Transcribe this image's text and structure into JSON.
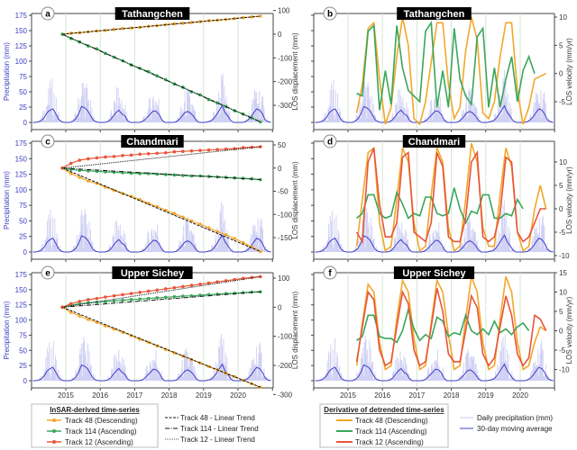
{
  "colors": {
    "track48": "#f2a72b",
    "track114": "#3aa65a",
    "track12": "#e8553a",
    "precip_avg": "#4040c8",
    "precip_daily": "#c9c9f2",
    "trend": "#111111",
    "grid": "#d5e6d5"
  },
  "precipitation": {
    "axis_label": "Precipitation (mm)",
    "ticks": [
      0,
      25,
      50,
      75,
      100,
      125,
      150,
      175
    ],
    "monthly_avg_start_year": 2014,
    "monthly_avg": [
      0,
      0,
      1,
      3,
      8,
      16,
      20,
      22,
      14,
      5,
      1,
      0,
      0,
      0,
      2,
      6,
      14,
      26,
      24,
      20,
      12,
      4,
      1,
      0,
      0,
      0,
      1,
      4,
      10,
      16,
      20,
      14,
      11,
      3,
      0,
      0,
      0,
      0,
      1,
      4,
      9,
      14,
      19,
      18,
      13,
      4,
      0,
      0,
      0,
      0,
      1,
      5,
      10,
      16,
      18,
      15,
      10,
      3,
      0,
      0,
      0,
      1,
      2,
      6,
      12,
      20,
      27,
      16,
      10,
      3,
      0,
      0,
      0,
      0,
      1,
      4,
      9,
      16,
      22,
      20,
      14,
      4,
      1,
      0
    ]
  },
  "x_ticks": [
    "2015",
    "2016",
    "2017",
    "2018",
    "2019",
    "2020"
  ],
  "chart_data": [
    {
      "panel": "a",
      "title": "Tathangchen",
      "type": "line",
      "ylabel_right": "LOS displacement (mm)",
      "right_ticks": [
        100,
        0,
        -100,
        -200,
        -300
      ],
      "x_start": 2014.9,
      "x_step": 0.25,
      "series": [
        {
          "name": "Track 48 (Descending)",
          "key": "track48",
          "values": [
            0,
            4,
            6,
            10,
            14,
            16,
            20,
            24,
            26,
            29,
            33,
            36,
            40,
            44,
            46,
            49,
            53,
            57,
            59,
            62,
            66,
            70,
            73,
            76
          ],
          "trend": [
            0,
            76
          ]
        },
        {
          "name": "Track 114 (Ascending)",
          "key": "track114",
          "values": [
            0,
            -18,
            -33,
            -50,
            -62,
            -81,
            -97,
            -112,
            -130,
            -144,
            -158,
            -176,
            -192,
            -210,
            -224,
            -243,
            -256,
            -276,
            -290,
            -305,
            -323,
            -337,
            -353,
            -370
          ],
          "trend": [
            0,
            -370
          ]
        }
      ]
    },
    {
      "panel": "b",
      "title": "Tathangchen",
      "type": "line",
      "ylabel_right": "LOS velocity (mm/yr)",
      "right_ticks": [
        10,
        5,
        0,
        -5
      ],
      "x_start": 2015.25,
      "x_step": 0.1667,
      "series": [
        {
          "name": "Track 48 (Descending)",
          "key": "track48",
          "values": [
            -7,
            -2,
            8,
            9,
            -1,
            -9,
            -6,
            3,
            10,
            5,
            -8,
            -9,
            -5,
            2,
            9,
            9,
            -2,
            -8,
            -6,
            4,
            10,
            6,
            -7,
            -8,
            -5,
            3,
            9,
            9,
            -3,
            -9,
            -6,
            -1,
            -0.5,
            0
          ]
        },
        {
          "name": "Track 114 (Ascending)",
          "key": "track114",
          "values": [
            -3.5,
            -4,
            7.5,
            8.5,
            -6.5,
            0.5,
            -5.5,
            8.5,
            1,
            -3,
            -4,
            -5,
            7.5,
            9,
            -6,
            0.5,
            -6,
            8,
            -1,
            -4,
            -5.5,
            6.5,
            8,
            -6,
            1,
            -6,
            -1,
            3,
            -5,
            0.5,
            3,
            0
          ]
        }
      ]
    },
    {
      "panel": "c",
      "title": "Chandmari",
      "type": "line",
      "ylabel_right": "LOS displacement (mm)",
      "right_ticks": [
        50,
        0,
        -50,
        -100,
        -150
      ],
      "x_start": 2014.9,
      "x_step": 0.25,
      "series": [
        {
          "name": "Track 48 (Descending)",
          "key": "track48",
          "values": [
            0,
            -12,
            -20,
            -28,
            -33,
            -41,
            -48,
            -55,
            -61,
            -68,
            -76,
            -83,
            -91,
            -98,
            -106,
            -114,
            -121,
            -129,
            -137,
            -144,
            -152,
            -161,
            -170,
            -180
          ],
          "trend": [
            0,
            -180
          ]
        },
        {
          "name": "Track 114 (Ascending)",
          "key": "track114",
          "values": [
            0,
            -3,
            -5,
            -6,
            -7,
            -8,
            -9,
            -10,
            -11,
            -12,
            -12,
            -13,
            -14,
            -15,
            -16,
            -17,
            -17,
            -18,
            -19,
            -20,
            -21,
            -22,
            -23,
            -25
          ],
          "trend": [
            0,
            -25
          ]
        },
        {
          "name": "Track 12 (Ascending)",
          "key": "track12",
          "values": [
            0,
            10,
            17,
            20,
            22,
            24,
            25,
            27,
            28,
            30,
            31,
            32,
            33,
            35,
            36,
            37,
            38,
            39,
            40,
            41,
            42,
            44,
            45,
            46
          ],
          "trend": [
            0,
            46
          ]
        }
      ]
    },
    {
      "panel": "d",
      "title": "Chandmari",
      "type": "line",
      "ylabel_right": "LOS velocity (mm/yr)",
      "right_ticks": [
        10,
        5,
        0,
        -5,
        -10
      ],
      "x_start": 2015.25,
      "x_step": 0.1667,
      "series": [
        {
          "name": "Track 48 (Descending)",
          "key": "track48",
          "values": [
            -8,
            2,
            12,
            13,
            -3,
            -9,
            -8,
            2,
            13,
            10,
            -3,
            -9,
            -8,
            3,
            13,
            10,
            -4,
            -9,
            -8,
            2,
            14,
            10,
            -4,
            -8,
            -8,
            3,
            13,
            9,
            -5,
            -9,
            -8,
            0,
            5,
            0
          ]
        },
        {
          "name": "Track 114 (Ascending)",
          "key": "track114",
          "values": [
            -2,
            -1,
            3,
            3,
            -1,
            -2,
            -1.5,
            3.5,
            1,
            -2,
            -1,
            -1.5,
            2.5,
            2.5,
            -1,
            -1.5,
            -1,
            4.5,
            0,
            -3,
            -0.5,
            -1,
            3,
            3,
            -2,
            -2,
            -1,
            -1.5,
            2,
            0
          ]
        },
        {
          "name": "Track 12 (Ascending)",
          "key": "track12",
          "values": [
            -5,
            -7,
            10,
            13,
            1,
            -6,
            -6,
            -3,
            11,
            12,
            -5,
            -6,
            -7,
            -3,
            12,
            9,
            -6,
            -7,
            -7,
            -2,
            10,
            12,
            -6,
            -7,
            -6,
            -1,
            11,
            10,
            -5,
            -7,
            -6,
            -3,
            0,
            0
          ]
        }
      ]
    },
    {
      "panel": "e",
      "title": "Upper Sichey",
      "type": "line",
      "ylabel_right": "LOS displacement (mm)",
      "right_ticks": [
        100,
        0,
        -100,
        -200,
        -300
      ],
      "x_start": 2014.9,
      "x_step": 0.25,
      "series": [
        {
          "name": "Track 48 (Descending)",
          "key": "track48",
          "values": [
            0,
            -18,
            -30,
            -42,
            -52,
            -64,
            -75,
            -86,
            -98,
            -110,
            -121,
            -133,
            -145,
            -157,
            -168,
            -180,
            -192,
            -204,
            -215,
            -227,
            -239,
            -251,
            -263,
            -275
          ],
          "trend": [
            0,
            -275
          ]
        },
        {
          "name": "Track 114 (Ascending)",
          "key": "track114",
          "values": [
            0,
            7,
            12,
            15,
            17,
            19,
            22,
            24,
            26,
            28,
            30,
            32,
            34,
            36,
            38,
            39,
            41,
            43,
            45,
            47,
            48,
            50,
            52,
            53
          ],
          "trend": [
            0,
            53
          ]
        },
        {
          "name": "Track 12 (Ascending)",
          "key": "track12",
          "values": [
            0,
            12,
            20,
            26,
            30,
            35,
            39,
            43,
            47,
            51,
            55,
            59,
            63,
            67,
            71,
            75,
            79,
            83,
            87,
            91,
            95,
            99,
            102,
            105
          ],
          "trend": [
            0,
            105
          ]
        }
      ]
    },
    {
      "panel": "f",
      "title": "Upper Sichey",
      "type": "line",
      "ylabel_right": "LOS velocity (mm/yr)",
      "right_ticks": [
        15,
        10,
        5,
        0,
        -5,
        -10
      ],
      "x_start": 2015.25,
      "x_step": 0.1667,
      "series": [
        {
          "name": "Track 48 (Descending)",
          "key": "track48",
          "values": [
            -9,
            2,
            12,
            10,
            -3,
            -10,
            -9,
            3,
            13,
            10,
            -2,
            -10,
            -9,
            2,
            13,
            10,
            -1,
            -10,
            -9,
            3,
            14,
            10,
            -3,
            -10,
            -9,
            3,
            14,
            10,
            -3,
            -10,
            -9,
            -3,
            1,
            0
          ]
        },
        {
          "name": "Track 114 (Ascending)",
          "key": "track114",
          "values": [
            -2.5,
            -1.5,
            4,
            4,
            -1.5,
            -2,
            -2,
            -3,
            0,
            5.5,
            0.5,
            -2.5,
            -1,
            -2,
            3.5,
            2.5,
            -1.5,
            -0.5,
            -1,
            4,
            0,
            -1,
            0.5,
            -1,
            2.5,
            -0.5,
            0.5,
            -1,
            1,
            2,
            0
          ]
        },
        {
          "name": "Track 12 (Ascending)",
          "key": "track12",
          "values": [
            -8,
            1,
            10,
            8,
            -5,
            -9,
            -8,
            1,
            10,
            7,
            -5,
            -9,
            -8,
            1,
            11,
            5,
            -6,
            -8,
            -8,
            0,
            9,
            6,
            -6,
            -9,
            -7,
            1,
            9,
            4,
            -6,
            -9,
            -7,
            4,
            3,
            0
          ]
        }
      ]
    }
  ],
  "legend_left": {
    "title": "InSAR-derived time-series",
    "items": [
      "Track 48 (Descending)",
      "Track 114 (Ascending)",
      "Track 12 (Ascending)"
    ],
    "trends": [
      "Track 48 - Linear Trend",
      "Track 114 - Linear Trend",
      "Track 12 - Linear Trend"
    ]
  },
  "legend_right": {
    "title": "Derivative of detrended time-series",
    "items": [
      "Track 48 (Descending)",
      "Track 114 (Ascending)",
      "Track 12 (Ascending)"
    ],
    "precip_items": [
      "Daily precipitation (mm)",
      "30-day moving average"
    ]
  }
}
